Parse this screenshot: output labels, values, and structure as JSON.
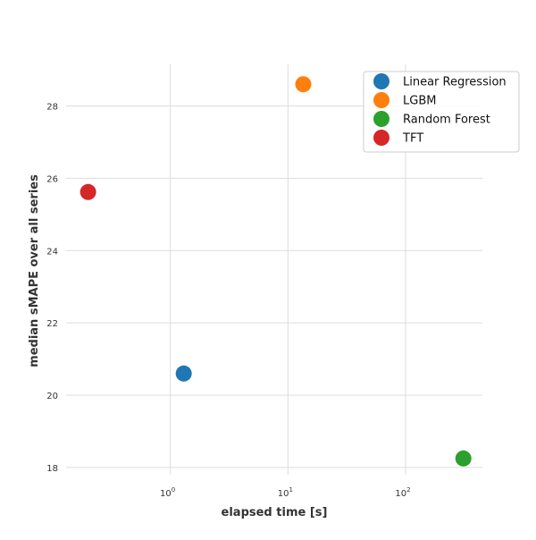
{
  "chart_data": {
    "type": "scatter",
    "title": "",
    "xlabel": "elapsed time [s]",
    "ylabel": "median sMAPE over all series",
    "x_scale": "log",
    "xlim": [
      0.13,
      450
    ],
    "ylim": [
      17.8,
      29.15
    ],
    "x_ticks": [
      {
        "value": 1,
        "base": "10",
        "exp": "0"
      },
      {
        "value": 10,
        "base": "10",
        "exp": "1"
      },
      {
        "value": 100,
        "base": "10",
        "exp": "2"
      }
    ],
    "y_ticks": [
      {
        "value": 18,
        "label": "18"
      },
      {
        "value": 20,
        "label": "20"
      },
      {
        "value": 22,
        "label": "22"
      },
      {
        "value": 24,
        "label": "24"
      },
      {
        "value": 26,
        "label": "26"
      },
      {
        "value": 28,
        "label": "28"
      }
    ],
    "grid": true,
    "legend_position": "top-right",
    "series": [
      {
        "name": "Linear Regression",
        "color": "#1f77b4",
        "x": 1.3,
        "y": 20.6
      },
      {
        "name": "LGBM",
        "color": "#ff7f0e",
        "x": 13.5,
        "y": 28.6
      },
      {
        "name": "Random Forest",
        "color": "#2ca02c",
        "x": 310,
        "y": 18.25
      },
      {
        "name": "TFT",
        "color": "#d62728",
        "x": 0.2,
        "y": 25.62
      }
    ]
  }
}
